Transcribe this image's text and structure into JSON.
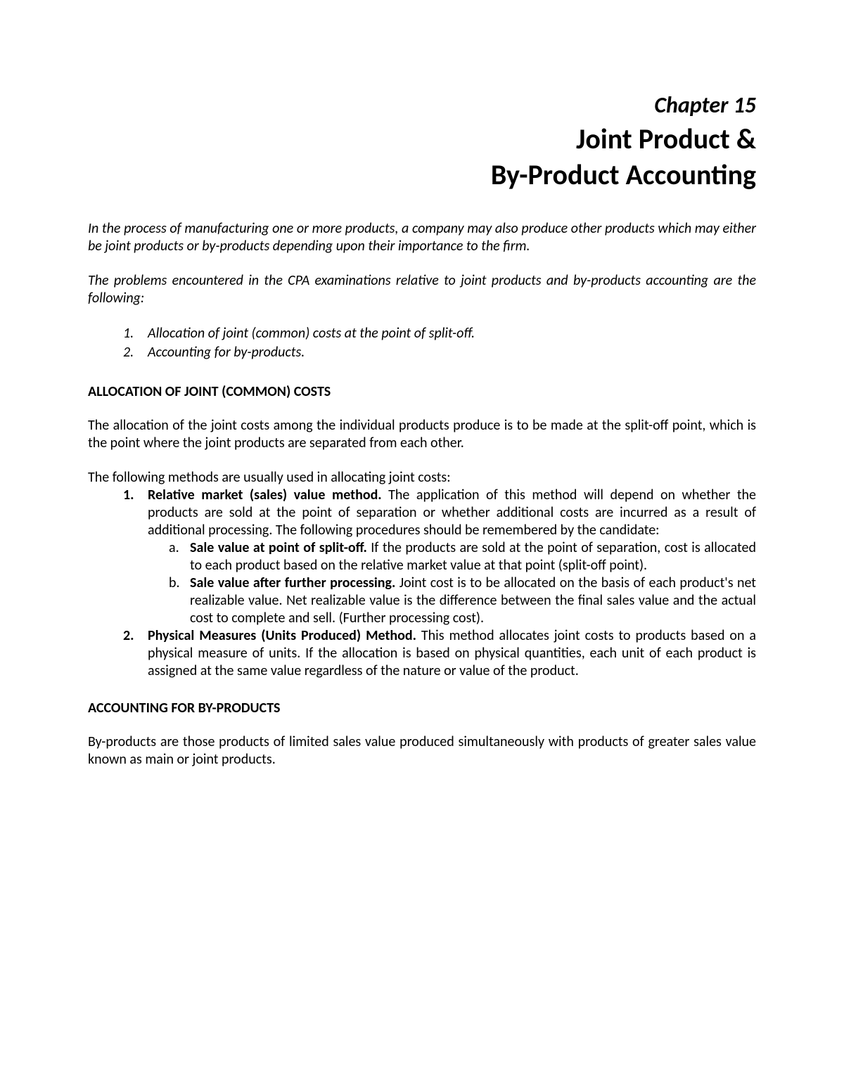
{
  "chapter_label": "Chapter 15",
  "title_line1": "Joint Product &",
  "title_line2": "By-Product Accounting",
  "intro1": "In the process of manufacturing one or more products, a company may also produce other products which may either be joint products or by-products depending upon their importance to the firm.",
  "intro2": "The problems encountered in the CPA examinations relative to joint products and by-products accounting are the following:",
  "problems": {
    "item1_num": "1.",
    "item1_text": "Allocation of joint (common) costs at the point of split-off.",
    "item2_num": "2.",
    "item2_text": "Accounting for by-products."
  },
  "section1_heading": "ALLOCATION OF JOINT (COMMON) COSTS",
  "section1_para1": "The allocation of the joint costs among the individual products produce is to be made at the split-off point, which is the point where the joint products are separated from each other.",
  "section1_para2": "The following methods are usually used in allocating joint costs:",
  "methods": {
    "m1_num": "1.",
    "m1_lead": "Relative market (sales) value method.",
    "m1_body": " The application of this method will depend on whether the products are sold at the point of separation or whether additional costs are incurred as a result of additional processing. The following procedures should be remembered by the candidate:",
    "m1_sub": {
      "a_letter": "a.",
      "a_lead": "Sale value at point of split-off.",
      "a_body": " If the products are sold at the point of separation, cost is allocated to each product based on the relative market value at that point (split-off point).",
      "b_letter": "b.",
      "b_lead": "Sale value after further processing.",
      "b_body": " Joint cost is to be allocated on the basis of each product's net realizable value. Net realizable value is the difference between the final sales value and the actual cost to complete and sell. (Further processing cost)."
    },
    "m2_num": "2.",
    "m2_lead": "Physical Measures (Units Produced) Method.",
    "m2_body": " This method allocates joint costs to products based on a physical measure of units. If the allocation is based on physical quantities, each unit of each product is assigned at the same value regardless of the nature or value of the product."
  },
  "section2_heading": "ACCOUNTING FOR BY-PRODUCTS",
  "section2_para1": "By-products are those products of limited sales value produced simultaneously with products of greater sales value known as main or joint products.",
  "colors": {
    "text": "#000000",
    "background": "#ffffff"
  },
  "typography": {
    "chapter_label_size": 32,
    "title_size": 40,
    "body_size": 20,
    "heading_size": 20,
    "font_family": "Calibri"
  }
}
